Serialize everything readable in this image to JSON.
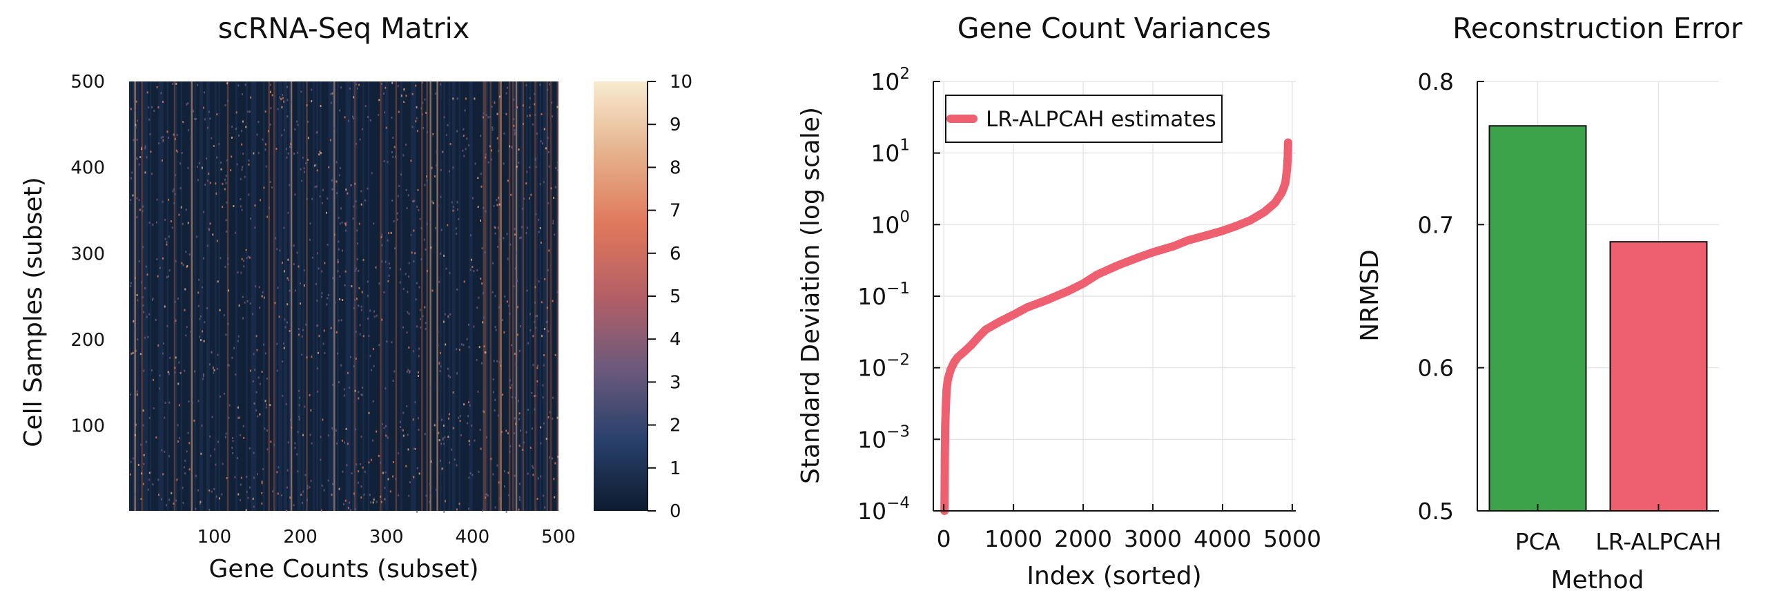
{
  "chart_data": [
    {
      "type": "heatmap",
      "title": "scRNA-Seq Matrix",
      "xlabel": "Gene Counts (subset)",
      "ylabel": "Cell Samples (subset)",
      "xlim": [
        1,
        500
      ],
      "ylim": [
        1,
        500
      ],
      "xticks": [
        "100",
        "200",
        "300",
        "400",
        "500"
      ],
      "yticks": [
        "100",
        "200",
        "300",
        "400",
        "500"
      ],
      "colorbar": {
        "min": 0,
        "max": 10,
        "ticks": [
          "0",
          "1",
          "2",
          "3",
          "4",
          "5",
          "6",
          "7",
          "8",
          "9",
          "10"
        ],
        "colors": [
          "#0d1b2e",
          "#29416c",
          "#6d5a7c",
          "#b45f66",
          "#e0785a",
          "#e5b18c",
          "#f8ebcf"
        ]
      },
      "background_color": "#0d1b2e"
    },
    {
      "type": "line",
      "title": "Gene Count Variances",
      "xlabel": "Index (sorted)",
      "ylabel": "Standard Deviation (log scale)",
      "yscale": "log",
      "xlim": [
        -150,
        5050
      ],
      "ylim": [
        0.0001,
        100
      ],
      "xticks": [
        "0",
        "1000",
        "2000",
        "3000",
        "4000",
        "5000"
      ],
      "yticks": [
        {
          "base": "10",
          "exp": "−4"
        },
        {
          "base": "10",
          "exp": "−3"
        },
        {
          "base": "10",
          "exp": "−2"
        },
        {
          "base": "10",
          "exp": "−1"
        },
        {
          "base": "10",
          "exp": "0"
        },
        {
          "base": "10",
          "exp": "1"
        },
        {
          "base": "10",
          "exp": "2"
        }
      ],
      "grid": true,
      "legend_position": "top-left",
      "series": [
        {
          "name": "LR-ALPCAH estimates",
          "color": "#ee6070",
          "points": [
            [
              10,
              0.0001
            ],
            [
              15,
              0.0006
            ],
            [
              20,
              0.0015
            ],
            [
              30,
              0.003
            ],
            [
              40,
              0.005
            ],
            [
              60,
              0.007
            ],
            [
              100,
              0.0095
            ],
            [
              150,
              0.012
            ],
            [
              200,
              0.014
            ],
            [
              300,
              0.017
            ],
            [
              400,
              0.021
            ],
            [
              500,
              0.027
            ],
            [
              600,
              0.034
            ],
            [
              800,
              0.044
            ],
            [
              1000,
              0.055
            ],
            [
              1200,
              0.07
            ],
            [
              1500,
              0.09
            ],
            [
              1800,
              0.12
            ],
            [
              2000,
              0.15
            ],
            [
              2200,
              0.2
            ],
            [
              2500,
              0.27
            ],
            [
              2800,
              0.35
            ],
            [
              3000,
              0.41
            ],
            [
              3300,
              0.5
            ],
            [
              3500,
              0.6
            ],
            [
              3800,
              0.72
            ],
            [
              4000,
              0.82
            ],
            [
              4200,
              0.96
            ],
            [
              4400,
              1.15
            ],
            [
              4600,
              1.5
            ],
            [
              4750,
              2.0
            ],
            [
              4850,
              2.8
            ],
            [
              4900,
              3.8
            ],
            [
              4925,
              6.0
            ],
            [
              4935,
              9.0
            ],
            [
              4940,
              14.0
            ]
          ]
        }
      ]
    },
    {
      "type": "bar",
      "title": "Reconstruction Error",
      "xlabel": "Method",
      "ylabel": "NRMSD",
      "ylim": [
        0.5,
        0.8
      ],
      "yticks": [
        "0.5",
        "0.6",
        "0.7",
        "0.8"
      ],
      "categories": [
        "PCA",
        "LR-ALPCAH"
      ],
      "values": [
        0.769,
        0.688
      ],
      "colors": [
        "#3da34a",
        "#ee6070"
      ],
      "grid": true
    }
  ]
}
